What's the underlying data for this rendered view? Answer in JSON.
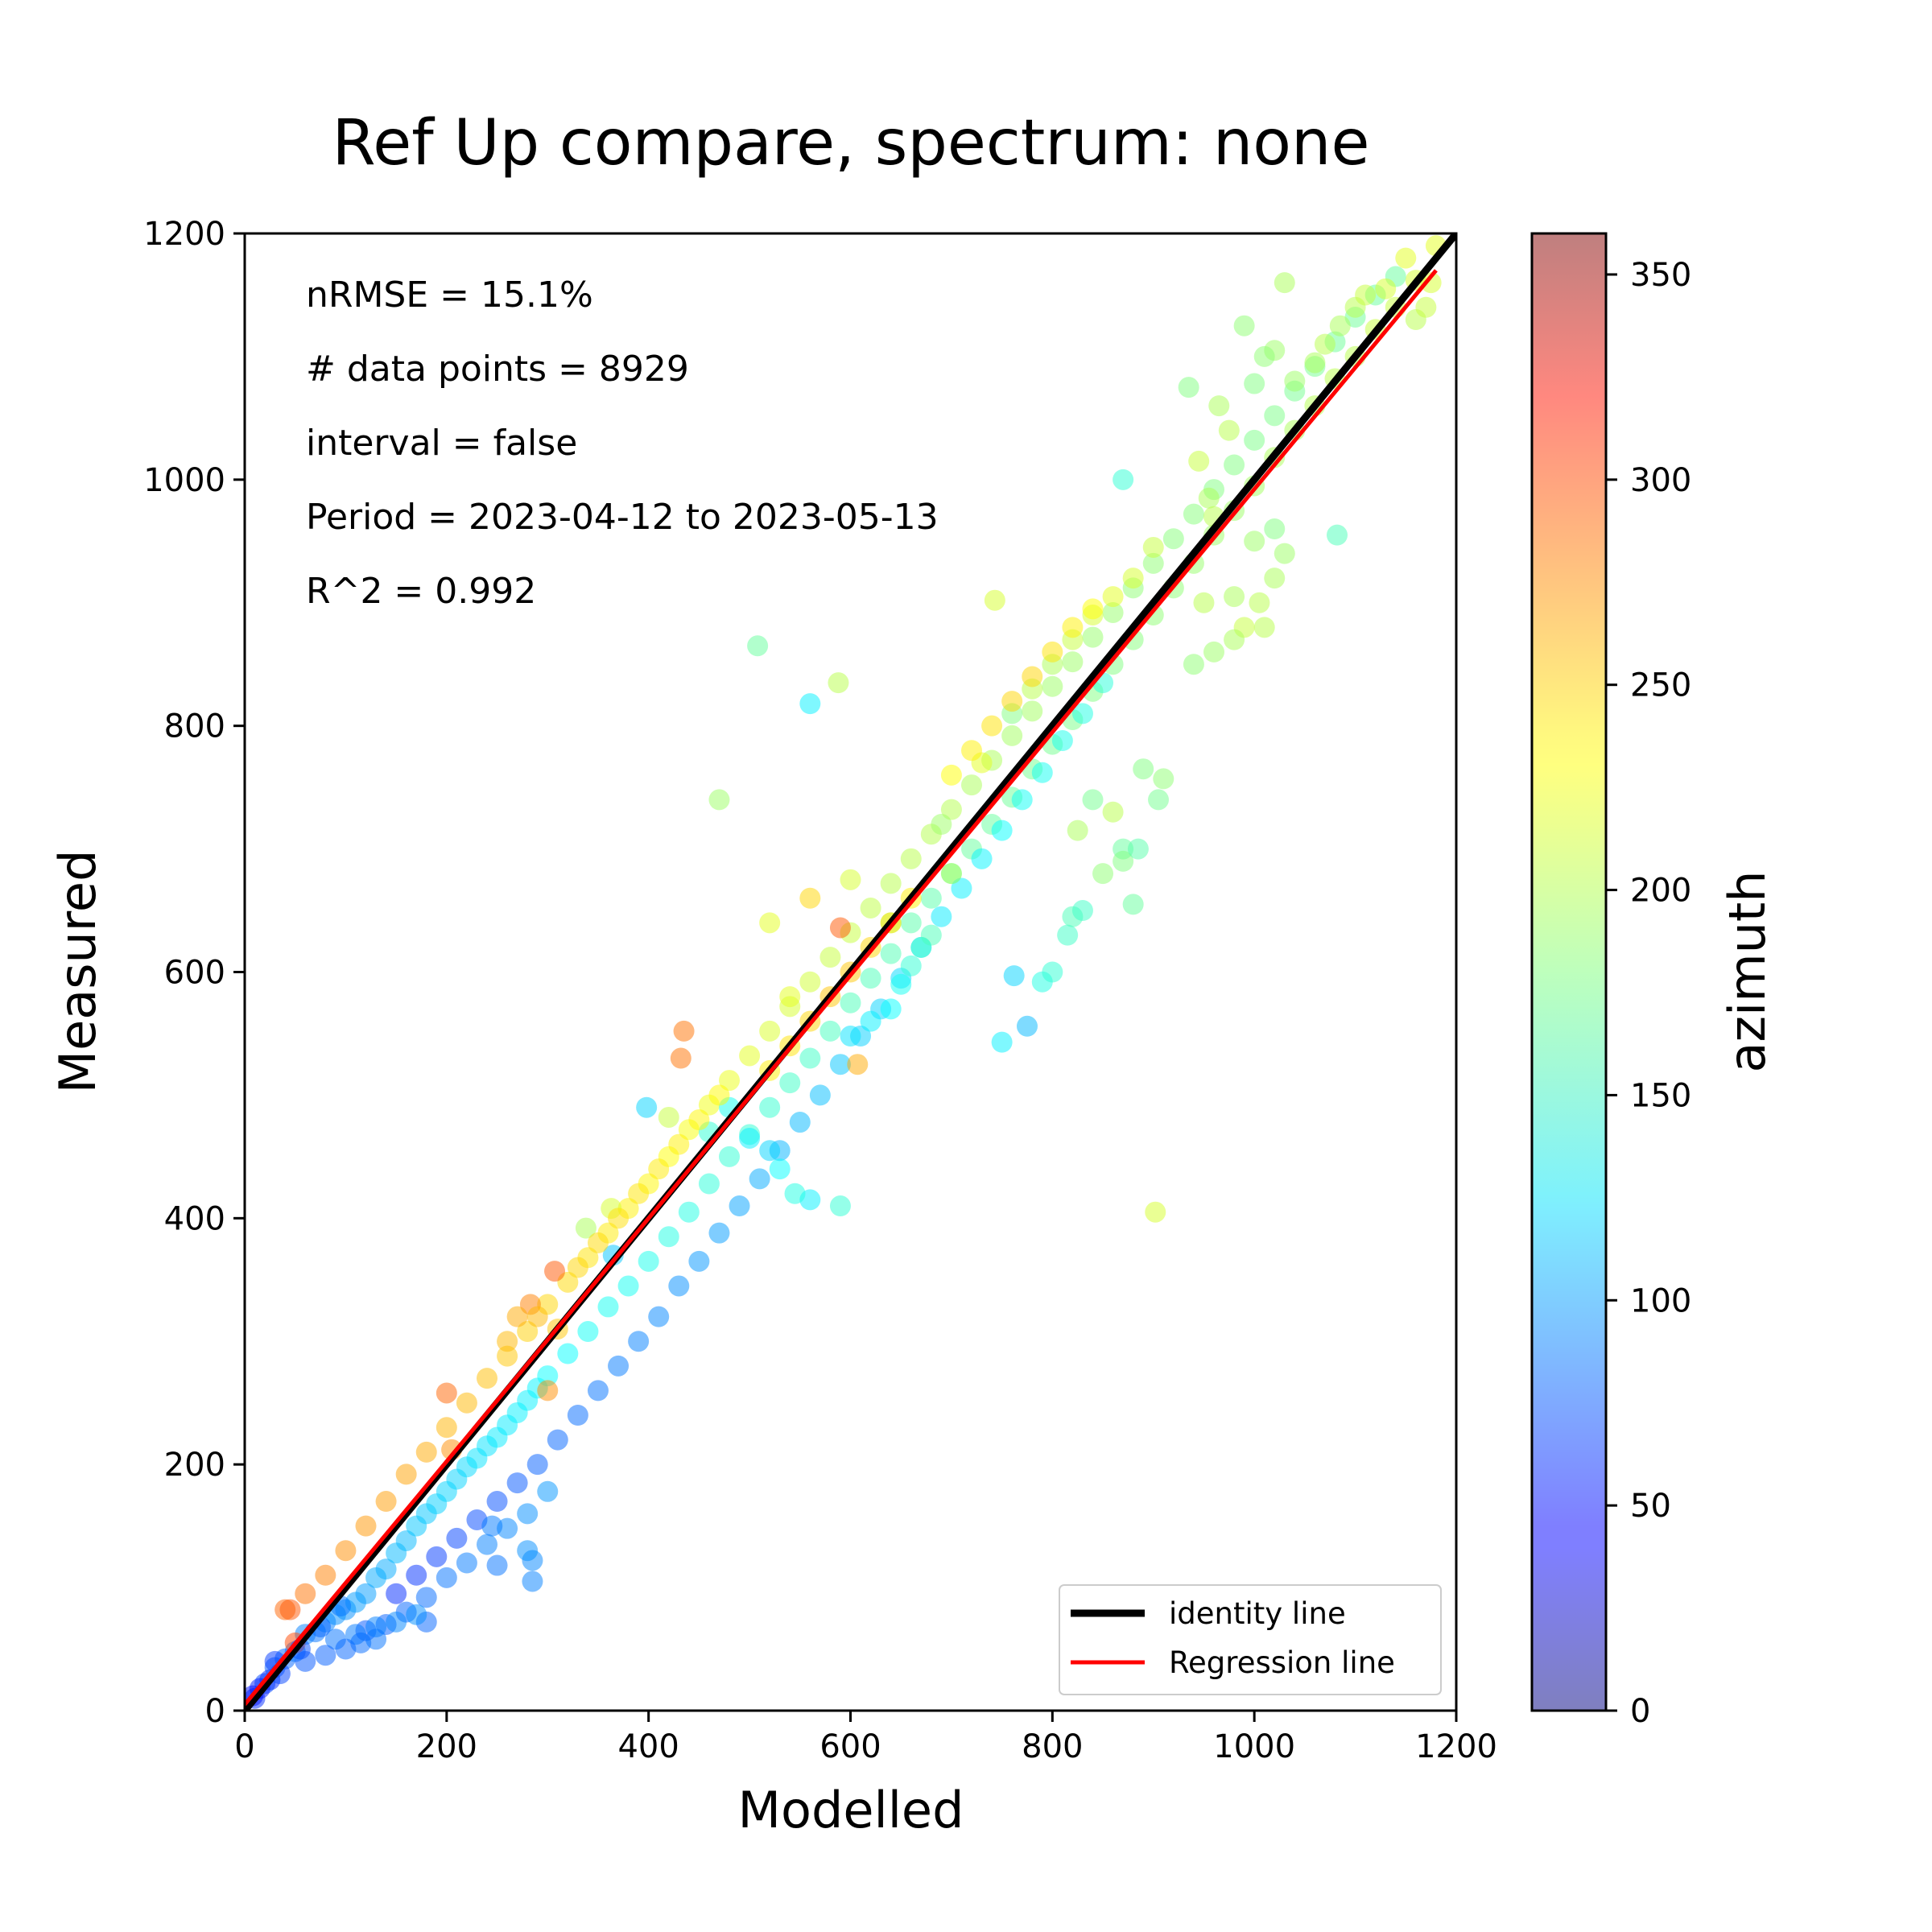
{
  "chart_data": {
    "type": "scatter",
    "title": "Ref Up compare, spectrum: none",
    "xlabel": "Modelled",
    "ylabel": "Measured",
    "xlim": [
      0,
      1200
    ],
    "ylim": [
      0,
      1200
    ],
    "xticks": [
      0,
      200,
      400,
      600,
      800,
      1000,
      1200
    ],
    "yticks": [
      0,
      200,
      400,
      600,
      800,
      1000,
      1200
    ],
    "grid": false,
    "annotations": [
      "nRMSE = 15.1%",
      "# data points = 8929",
      "interval = false",
      "Period = 2023-04-12 to 2023-05-13",
      "R^2 = 0.992"
    ],
    "colorbar": {
      "label": "azimuth",
      "range": [
        0,
        360
      ],
      "ticks": [
        0,
        50,
        100,
        150,
        200,
        250,
        300,
        350
      ],
      "colormap": "jet"
    },
    "identity_line": {
      "name": "identity line",
      "color": "#000000",
      "points": [
        [
          0,
          0
        ],
        [
          1200,
          1200
        ]
      ]
    },
    "regression_line": {
      "name": "Regression line",
      "color": "#ff0000",
      "points": [
        [
          0,
          5
        ],
        [
          1180,
          1170
        ]
      ]
    },
    "legend_position": "lower-right",
    "point_size_note": "semi-transparent circles colored by azimuth",
    "points": [
      [
        10,
        10,
        60
      ],
      [
        20,
        22,
        70
      ],
      [
        30,
        35,
        75
      ],
      [
        40,
        42,
        80
      ],
      [
        50,
        48,
        85
      ],
      [
        60,
        62,
        90
      ],
      [
        70,
        64,
        85
      ],
      [
        80,
        72,
        90
      ],
      [
        90,
        78,
        95
      ],
      [
        100,
        82,
        95
      ],
      [
        110,
        88,
        100
      ],
      [
        120,
        95,
        100
      ],
      [
        130,
        108,
        105
      ],
      [
        140,
        115,
        105
      ],
      [
        150,
        128,
        110
      ],
      [
        160,
        138,
        110
      ],
      [
        170,
        150,
        115
      ],
      [
        180,
        160,
        115
      ],
      [
        190,
        168,
        118
      ],
      [
        200,
        178,
        120
      ],
      [
        210,
        188,
        120
      ],
      [
        220,
        198,
        122
      ],
      [
        230,
        205,
        125
      ],
      [
        240,
        215,
        125
      ],
      [
        250,
        222,
        128
      ],
      [
        260,
        232,
        128
      ],
      [
        270,
        242,
        130
      ],
      [
        280,
        252,
        130
      ],
      [
        290,
        262,
        132
      ],
      [
        300,
        272,
        135
      ],
      [
        320,
        290,
        135
      ],
      [
        340,
        308,
        138
      ],
      [
        360,
        328,
        140
      ],
      [
        380,
        345,
        140
      ],
      [
        400,
        365,
        142
      ],
      [
        420,
        385,
        145
      ],
      [
        440,
        405,
        145
      ],
      [
        460,
        428,
        148
      ],
      [
        480,
        450,
        150
      ],
      [
        500,
        468,
        150
      ],
      [
        520,
        490,
        152
      ],
      [
        540,
        510,
        155
      ],
      [
        560,
        530,
        155
      ],
      [
        580,
        552,
        158
      ],
      [
        600,
        575,
        160
      ],
      [
        620,
        595,
        160
      ],
      [
        640,
        615,
        162
      ],
      [
        660,
        640,
        165
      ],
      [
        680,
        660,
        165
      ],
      [
        700,
        680,
        168
      ],
      [
        720,
        700,
        170
      ],
      [
        740,
        720,
        170
      ],
      [
        760,
        742,
        172
      ],
      [
        780,
        765,
        175
      ],
      [
        800,
        785,
        175
      ],
      [
        820,
        805,
        178
      ],
      [
        840,
        828,
        180
      ],
      [
        860,
        850,
        180
      ],
      [
        880,
        870,
        182
      ],
      [
        900,
        890,
        185
      ],
      [
        920,
        912,
        185
      ],
      [
        940,
        932,
        188
      ],
      [
        960,
        955,
        190
      ],
      [
        980,
        975,
        190
      ],
      [
        1000,
        995,
        192
      ],
      [
        1020,
        1018,
        195
      ],
      [
        1040,
        1040,
        195
      ],
      [
        1060,
        1060,
        198
      ],
      [
        1080,
        1082,
        200
      ],
      [
        1100,
        1100,
        200
      ],
      [
        1120,
        1122,
        205
      ],
      [
        1140,
        1140,
        205
      ],
      [
        1160,
        1162,
        210
      ],
      [
        1180,
        1190,
        215
      ],
      [
        40,
        82,
        280
      ],
      [
        60,
        95,
        275
      ],
      [
        80,
        110,
        270
      ],
      [
        100,
        130,
        265
      ],
      [
        120,
        150,
        262
      ],
      [
        140,
        170,
        260
      ],
      [
        160,
        192,
        258
      ],
      [
        180,
        210,
        255
      ],
      [
        200,
        230,
        252
      ],
      [
        220,
        250,
        250
      ],
      [
        240,
        270,
        248
      ],
      [
        260,
        288,
        245
      ],
      [
        280,
        308,
        242
      ],
      [
        300,
        330,
        240
      ],
      [
        320,
        348,
        238
      ],
      [
        340,
        368,
        235
      ],
      [
        360,
        388,
        232
      ],
      [
        380,
        408,
        230
      ],
      [
        400,
        428,
        228
      ],
      [
        420,
        450,
        225
      ],
      [
        440,
        472,
        222
      ],
      [
        460,
        492,
        220
      ],
      [
        480,
        512,
        218
      ],
      [
        500,
        532,
        215
      ],
      [
        520,
        552,
        212
      ],
      [
        540,
        572,
        210
      ],
      [
        560,
        592,
        208
      ],
      [
        580,
        612,
        205
      ],
      [
        600,
        632,
        205
      ],
      [
        620,
        652,
        202
      ],
      [
        640,
        672,
        200
      ],
      [
        660,
        692,
        200
      ],
      [
        680,
        712,
        198
      ],
      [
        700,
        732,
        198
      ],
      [
        720,
        752,
        195
      ],
      [
        740,
        772,
        195
      ],
      [
        760,
        792,
        192
      ],
      [
        780,
        812,
        192
      ],
      [
        800,
        832,
        190
      ],
      [
        820,
        852,
        190
      ],
      [
        840,
        872,
        188
      ],
      [
        860,
        892,
        188
      ],
      [
        880,
        912,
        185
      ],
      [
        900,
        932,
        185
      ],
      [
        920,
        952,
        182
      ],
      [
        940,
        972,
        182
      ],
      [
        960,
        992,
        180
      ],
      [
        980,
        1012,
        180
      ],
      [
        1000,
        1032,
        178
      ],
      [
        1020,
        1052,
        178
      ],
      [
        1040,
        1072,
        175
      ],
      [
        1060,
        1092,
        175
      ],
      [
        1080,
        1112,
        172
      ],
      [
        1100,
        1132,
        172
      ],
      [
        1120,
        1150,
        170
      ],
      [
        1140,
        1165,
        170
      ],
      [
        150,
        95,
        60
      ],
      [
        170,
        110,
        62
      ],
      [
        190,
        125,
        65
      ],
      [
        210,
        140,
        68
      ],
      [
        230,
        155,
        70
      ],
      [
        250,
        170,
        72
      ],
      [
        270,
        185,
        75
      ],
      [
        290,
        200,
        78
      ],
      [
        310,
        220,
        80
      ],
      [
        330,
        240,
        82
      ],
      [
        350,
        260,
        85
      ],
      [
        370,
        280,
        88
      ],
      [
        390,
        300,
        90
      ],
      [
        410,
        320,
        92
      ],
      [
        430,
        345,
        95
      ],
      [
        450,
        365,
        98
      ],
      [
        470,
        388,
        100
      ],
      [
        490,
        410,
        102
      ],
      [
        510,
        432,
        105
      ],
      [
        530,
        455,
        108
      ],
      [
        550,
        478,
        110
      ],
      [
        570,
        500,
        112
      ],
      [
        590,
        525,
        115
      ],
      [
        610,
        548,
        118
      ],
      [
        630,
        570,
        120
      ],
      [
        650,
        595,
        122
      ],
      [
        670,
        620,
        125
      ],
      [
        690,
        645,
        128
      ],
      [
        710,
        668,
        130
      ],
      [
        730,
        692,
        132
      ],
      [
        750,
        715,
        135
      ],
      [
        770,
        740,
        138
      ],
      [
        790,
        762,
        140
      ],
      [
        810,
        788,
        142
      ],
      [
        830,
        810,
        145
      ],
      [
        850,
        835,
        148
      ],
      [
        120,
        65,
        75
      ],
      [
        140,
        70,
        78
      ],
      [
        160,
        80,
        80
      ],
      [
        180,
        92,
        82
      ],
      [
        200,
        108,
        85
      ],
      [
        220,
        120,
        88
      ],
      [
        240,
        135,
        90
      ],
      [
        260,
        148,
        92
      ],
      [
        280,
        160,
        95
      ],
      [
        300,
        178,
        98
      ],
      [
        180,
        72,
        80
      ],
      [
        250,
        118,
        85
      ],
      [
        245,
        150,
        88
      ],
      [
        285,
        105,
        90
      ],
      [
        285,
        122,
        92
      ],
      [
        280,
        130,
        95
      ],
      [
        90,
        58,
        85
      ],
      [
        110,
        62,
        88
      ],
      [
        130,
        68,
        90
      ],
      [
        150,
        72,
        92
      ],
      [
        170,
        78,
        95
      ],
      [
        100,
        50,
        80
      ],
      [
        115,
        55,
        82
      ],
      [
        130,
        58,
        85
      ],
      [
        80,
        45,
        78
      ],
      [
        60,
        40,
        75
      ],
      [
        30,
        40,
        65
      ],
      [
        50,
        55,
        290
      ],
      [
        45,
        82,
        285
      ],
      [
        25,
        25,
        60
      ],
      [
        15,
        18,
        55
      ],
      [
        8,
        12,
        50
      ],
      [
        35,
        30,
        68
      ],
      [
        55,
        50,
        72
      ],
      [
        75,
        68,
        80
      ],
      [
        95,
        85,
        85
      ],
      [
        508,
        865,
        170
      ],
      [
        588,
        835,
        200
      ],
      [
        560,
        818,
        130
      ],
      [
        902,
        405,
        210
      ],
      [
        870,
        1000,
        150
      ],
      [
        1082,
        955,
        160
      ],
      [
        743,
        902,
        210
      ],
      [
        762,
        597,
        120
      ],
      [
        775,
        556,
        110
      ],
      [
        750,
        543,
        130
      ],
      [
        790,
        592,
        145
      ],
      [
        800,
        600,
        150
      ],
      [
        815,
        630,
        155
      ],
      [
        820,
        645,
        160
      ],
      [
        830,
        650,
        155
      ],
      [
        825,
        715,
        195
      ],
      [
        870,
        700,
        170
      ],
      [
        890,
        765,
        180
      ],
      [
        905,
        740,
        175
      ],
      [
        910,
        757,
        185
      ],
      [
        850,
        680,
        185
      ],
      [
        870,
        690,
        180
      ],
      [
        860,
        730,
        200
      ],
      [
        880,
        655,
        170
      ],
      [
        840,
        740,
        175
      ],
      [
        885,
        700,
        165
      ],
      [
        730,
        770,
        215
      ],
      [
        690,
        720,
        190
      ],
      [
        700,
        680,
        195
      ],
      [
        640,
        640,
        195
      ],
      [
        600,
        675,
        210
      ],
      [
        607,
        525,
        255
      ],
      [
        590,
        636,
        285
      ],
      [
        560,
        660,
        240
      ],
      [
        540,
        580,
        215
      ],
      [
        520,
        640,
        215
      ],
      [
        470,
        740,
        190
      ],
      [
        435,
        552,
        275
      ],
      [
        432,
        530,
        275
      ],
      [
        420,
        482,
        205
      ],
      [
        398,
        490,
        120
      ],
      [
        365,
        370,
        115
      ],
      [
        363,
        408,
        210
      ],
      [
        338,
        392,
        195
      ],
      [
        307,
        357,
        285
      ],
      [
        283,
        330,
        270
      ],
      [
        300,
        260,
        265
      ],
      [
        200,
        258,
        280
      ],
      [
        205,
        212,
        265
      ],
      [
        270,
        320,
        255
      ],
      [
        260,
        300,
        250
      ],
      [
        290,
        320,
        250
      ],
      [
        310,
        310,
        245
      ],
      [
        590,
        410,
        150
      ],
      [
        560,
        415,
        130
      ],
      [
        545,
        420,
        145
      ],
      [
        530,
        440,
        135
      ],
      [
        520,
        455,
        120
      ],
      [
        500,
        465,
        130
      ],
      [
        480,
        490,
        140
      ],
      [
        460,
        470,
        150
      ],
      [
        600,
        548,
        125
      ],
      [
        620,
        560,
        130
      ],
      [
        640,
        570,
        135
      ],
      [
        650,
        590,
        140
      ],
      [
        660,
        605,
        150
      ],
      [
        670,
        620,
        155
      ],
      [
        680,
        630,
        160
      ],
      [
        1000,
        1078,
        180
      ],
      [
        1020,
        1105,
        190
      ],
      [
        1030,
        1160,
        195
      ],
      [
        1040,
        1080,
        190
      ],
      [
        1060,
        1095,
        195
      ],
      [
        1070,
        1110,
        200
      ],
      [
        1085,
        1125,
        195
      ],
      [
        1100,
        1140,
        200
      ],
      [
        1110,
        1150,
        205
      ],
      [
        1130,
        1155,
        210
      ],
      [
        1150,
        1180,
        215
      ],
      [
        1160,
        1130,
        200
      ],
      [
        1170,
        1140,
        205
      ],
      [
        1175,
        1160,
        210
      ],
      [
        990,
        1125,
        185
      ],
      [
        1010,
        1100,
        185
      ],
      [
        965,
        1060,
        195
      ],
      [
        975,
        1040,
        200
      ],
      [
        945,
        1015,
        205
      ],
      [
        955,
        985,
        195
      ],
      [
        960,
        970,
        200
      ],
      [
        935,
        1075,
        180
      ],
      [
        1005,
        900,
        200
      ],
      [
        1020,
        920,
        195
      ],
      [
        1030,
        940,
        190
      ],
      [
        1010,
        880,
        200
      ],
      [
        990,
        880,
        205
      ],
      [
        980,
        870,
        195
      ],
      [
        960,
        860,
        190
      ],
      [
        940,
        850,
        185
      ],
      [
        950,
        900,
        200
      ],
      [
        980,
        905,
        195
      ],
      [
        1000,
        950,
        190
      ],
      [
        1020,
        960,
        180
      ],
      [
        760,
        810,
        180
      ],
      [
        780,
        830,
        200
      ],
      [
        800,
        850,
        195
      ],
      [
        820,
        870,
        205
      ],
      [
        840,
        890,
        210
      ],
      [
        860,
        905,
        215
      ],
      [
        880,
        920,
        210
      ],
      [
        900,
        945,
        205
      ],
      [
        700,
        760,
        225
      ],
      [
        720,
        780,
        230
      ],
      [
        740,
        800,
        235
      ],
      [
        760,
        820,
        240
      ],
      [
        780,
        840,
        240
      ],
      [
        800,
        860,
        235
      ],
      [
        820,
        880,
        230
      ],
      [
        840,
        895,
        225
      ],
      [
        520,
        520,
        230
      ],
      [
        540,
        540,
        235
      ],
      [
        560,
        560,
        240
      ],
      [
        580,
        580,
        245
      ],
      [
        600,
        600,
        245
      ],
      [
        620,
        620,
        240
      ],
      [
        640,
        640,
        235
      ],
      [
        660,
        660,
        230
      ],
      [
        330,
        360,
        240
      ],
      [
        350,
        380,
        238
      ],
      [
        370,
        400,
        236
      ],
      [
        390,
        420,
        234
      ],
      [
        410,
        440,
        232
      ],
      [
        430,
        460,
        230
      ],
      [
        450,
        480,
        228
      ],
      [
        470,
        500,
        226
      ]
    ]
  }
}
